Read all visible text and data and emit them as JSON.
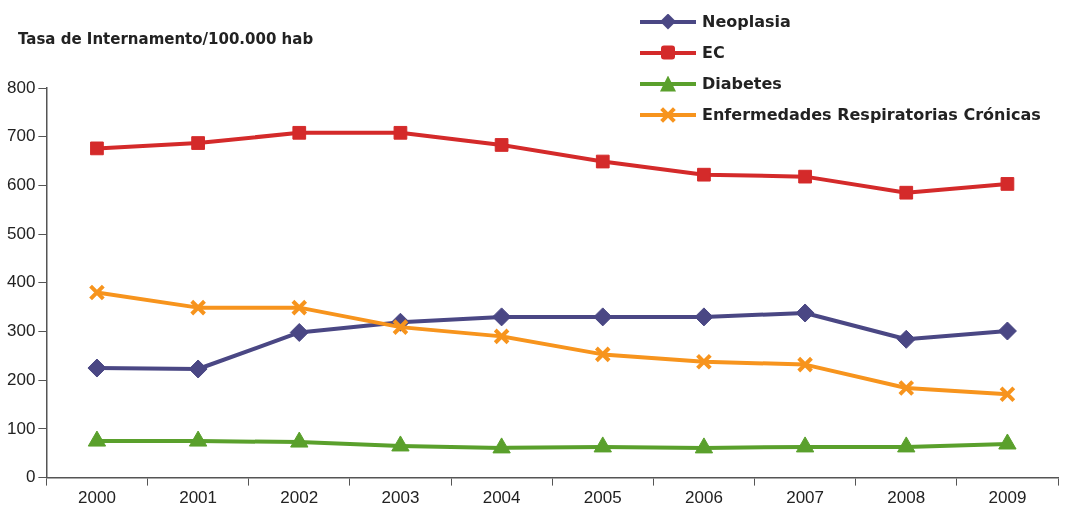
{
  "chart_data": {
    "type": "line",
    "ylabel": "Tasa de Internamento/100.000 hab",
    "categories": [
      "2000",
      "2001",
      "2002",
      "2003",
      "2004",
      "2005",
      "2006",
      "2007",
      "2008",
      "2009"
    ],
    "series": [
      {
        "name": "Neoplasia",
        "color": "#4a4784",
        "marker": "diamond",
        "values": [
          225,
          223,
          298,
          319,
          330,
          330,
          330,
          338,
          284,
          301
        ]
      },
      {
        "name": "EC",
        "color": "#d42a2a",
        "marker": "square",
        "values": [
          676,
          687,
          708,
          708,
          683,
          649,
          622,
          618,
          585,
          603
        ]
      },
      {
        "name": "Diabetes",
        "color": "#5aa02c",
        "marker": "triangle",
        "values": [
          75,
          75,
          73,
          65,
          61,
          63,
          61,
          63,
          63,
          69
        ]
      },
      {
        "name": "Enfermedades Respiratorias Crónicas",
        "color": "#f7941d",
        "marker": "cross",
        "values": [
          380,
          349,
          349,
          309,
          290,
          253,
          238,
          232,
          184,
          171
        ]
      }
    ],
    "ylim": [
      0,
      800
    ],
    "yticks": [
      0,
      100,
      200,
      300,
      400,
      500,
      600,
      700,
      800
    ],
    "grid": false,
    "legend": "top right"
  }
}
